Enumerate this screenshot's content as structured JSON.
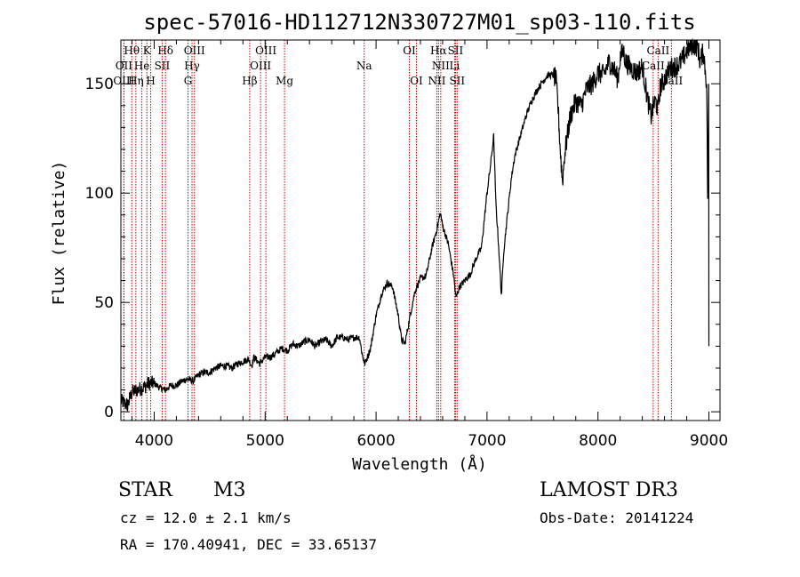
{
  "chart_data": {
    "type": "line",
    "title": "spec-57016-HD112712N330727M01_sp03-110.fits",
    "xlabel": "Wavelength (Å)",
    "ylabel": "Flux (relative)",
    "xlim": [
      3700,
      9100
    ],
    "ylim": [
      -4,
      170
    ],
    "xticks": [
      4000,
      5000,
      6000,
      7000,
      8000,
      9000
    ],
    "yticks": [
      0,
      50,
      100,
      150
    ],
    "series": [
      {
        "name": "flux",
        "x": [
          3700,
          3760,
          3800,
          3850,
          3900,
          3950,
          4000,
          4050,
          4100,
          4150,
          4200,
          4250,
          4300,
          4350,
          4400,
          4450,
          4500,
          4550,
          4600,
          4650,
          4700,
          4750,
          4800,
          4850,
          4880,
          4900,
          4950,
          5000,
          5050,
          5100,
          5150,
          5200,
          5250,
          5300,
          5350,
          5400,
          5450,
          5500,
          5550,
          5600,
          5650,
          5700,
          5750,
          5800,
          5850,
          5880,
          5900,
          5950,
          6000,
          6050,
          6080,
          6100,
          6150,
          6200,
          6230,
          6260,
          6300,
          6330,
          6350,
          6400,
          6450,
          6500,
          6550,
          6580,
          6600,
          6650,
          6700,
          6720,
          6750,
          6800,
          6850,
          6900,
          6950,
          7000,
          7030,
          7060,
          7080,
          7100,
          7130,
          7150,
          7180,
          7220,
          7250,
          7300,
          7350,
          7400,
          7450,
          7500,
          7550,
          7600,
          7620,
          7640,
          7660,
          7680,
          7700,
          7750,
          7800,
          7850,
          7900,
          7950,
          8000,
          8050,
          8100,
          8150,
          8180,
          8200,
          8230,
          8250,
          8300,
          8350,
          8400,
          8450,
          8480,
          8500,
          8520,
          8540,
          8560,
          8600,
          8650,
          8700,
          8750,
          8800,
          8850,
          8900,
          8920,
          8950,
          8980,
          9000
        ],
        "values": [
          5,
          3,
          9,
          10,
          11,
          13,
          13,
          11,
          10,
          12,
          12,
          14,
          15,
          14,
          17,
          18,
          18,
          20,
          21,
          21,
          20,
          22,
          23,
          24,
          21,
          25,
          22,
          25,
          25,
          27,
          29,
          28,
          31,
          30,
          32,
          33,
          30,
          32,
          33,
          30,
          34,
          34,
          33,
          34,
          34,
          25,
          22,
          29,
          44,
          54,
          57,
          59,
          57,
          44,
          33,
          31,
          42,
          50,
          55,
          61,
          62,
          74,
          84,
          91,
          85,
          77,
          62,
          52,
          57,
          60,
          63,
          70,
          75,
          100,
          112,
          126,
          95,
          80,
          53,
          73,
          88,
          107,
          117,
          126,
          135,
          142,
          147,
          151,
          154,
          154,
          152,
          140,
          120,
          105,
          118,
          135,
          142,
          140,
          148,
          150,
          155,
          154,
          160,
          156,
          152,
          162,
          165,
          160,
          157,
          155,
          158,
          142,
          135,
          140,
          142,
          138,
          148,
          152,
          157,
          158,
          160,
          165,
          168,
          167,
          160,
          165,
          150,
          30
        ]
      }
    ],
    "lines": [
      {
        "name": "Hθ",
        "wl": 3798,
        "row": 0
      },
      {
        "name": "OII",
        "wl": 3727,
        "row": 1
      },
      {
        "name": "OIII",
        "wl": 3727,
        "row": 2
      },
      {
        "name": "He",
        "wl": 3889,
        "row": 1
      },
      {
        "name": "Hη",
        "wl": 3835,
        "row": 2
      },
      {
        "name": "K",
        "wl": 3934,
        "row": 0
      },
      {
        "name": "SII",
        "wl": 4072,
        "row": 1
      },
      {
        "name": "H",
        "wl": 3969,
        "row": 2
      },
      {
        "name": "Hδ",
        "wl": 4102,
        "row": 0
      },
      {
        "name": "OIII",
        "wl": 4363,
        "row": 0
      },
      {
        "name": "Hγ",
        "wl": 4341,
        "row": 1
      },
      {
        "name": "G",
        "wl": 4305,
        "row": 2
      },
      {
        "name": "Hβ",
        "wl": 4861,
        "row": 2
      },
      {
        "name": "OIII",
        "wl": 5007,
        "row": 0
      },
      {
        "name": "OIII",
        "wl": 4959,
        "row": 1
      },
      {
        "name": "Mg",
        "wl": 5175,
        "row": 2
      },
      {
        "name": "Na",
        "wl": 5893,
        "row": 1
      },
      {
        "name": "OI",
        "wl": 6300,
        "row": 0
      },
      {
        "name": "OI",
        "wl": 6364,
        "row": 2
      },
      {
        "name": "Hα",
        "wl": 6563,
        "row": 0
      },
      {
        "name": "SII",
        "wl": 6716,
        "row": 0
      },
      {
        "name": "NII",
        "wl": 6583,
        "row": 1
      },
      {
        "name": "Li",
        "wl": 6708,
        "row": 1
      },
      {
        "name": "NII",
        "wl": 6548,
        "row": 2
      },
      {
        "name": "SII",
        "wl": 6731,
        "row": 2
      },
      {
        "name": "CaII",
        "wl": 8542,
        "row": 0
      },
      {
        "name": "CaII",
        "wl": 8498,
        "row": 1
      },
      {
        "name": "CaII",
        "wl": 8662,
        "row": 2
      }
    ]
  },
  "info": {
    "object_type": "STAR",
    "subclass": "M3",
    "survey": "LAMOST DR3",
    "redshift": "cz = 12.0 ± 2.1 km/s",
    "obs_date": "Obs-Date: 20141224",
    "coords": "RA = 170.40941, DEC =  33.65137"
  },
  "colors": {
    "line_marker": "#cc0000",
    "spectrum": "#000000"
  }
}
